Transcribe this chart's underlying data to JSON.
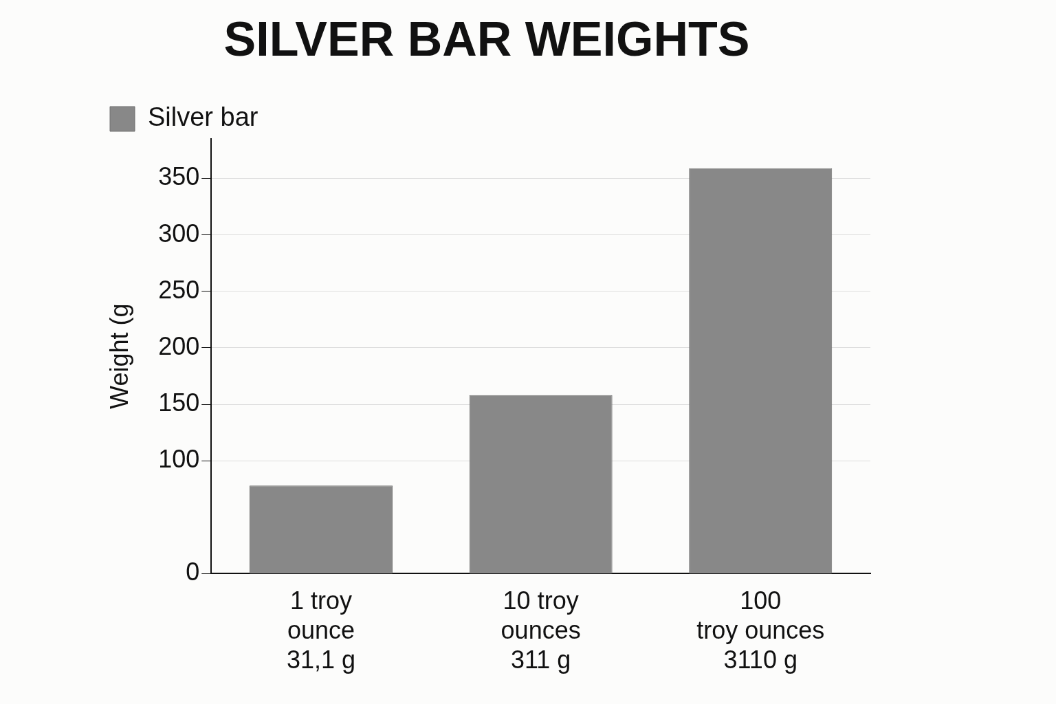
{
  "chart_data": {
    "type": "bar",
    "title": "SILVER BAR WEIGHTS",
    "ylabel": "Weight (g",
    "categories": [
      "1 troy\nounce\n31,1 g",
      "10 troy\nounces\n311 g",
      "100\ntroy ounces\n3110 g"
    ],
    "series": [
      {
        "name": "Silver bar",
        "color": "#888888",
        "values": [
          78,
          158,
          359
        ]
      }
    ],
    "ylim": [
      0,
      385
    ],
    "yticks": [
      0,
      100,
      150,
      200,
      250,
      300,
      350
    ],
    "grid": "y",
    "legend": "top left"
  }
}
